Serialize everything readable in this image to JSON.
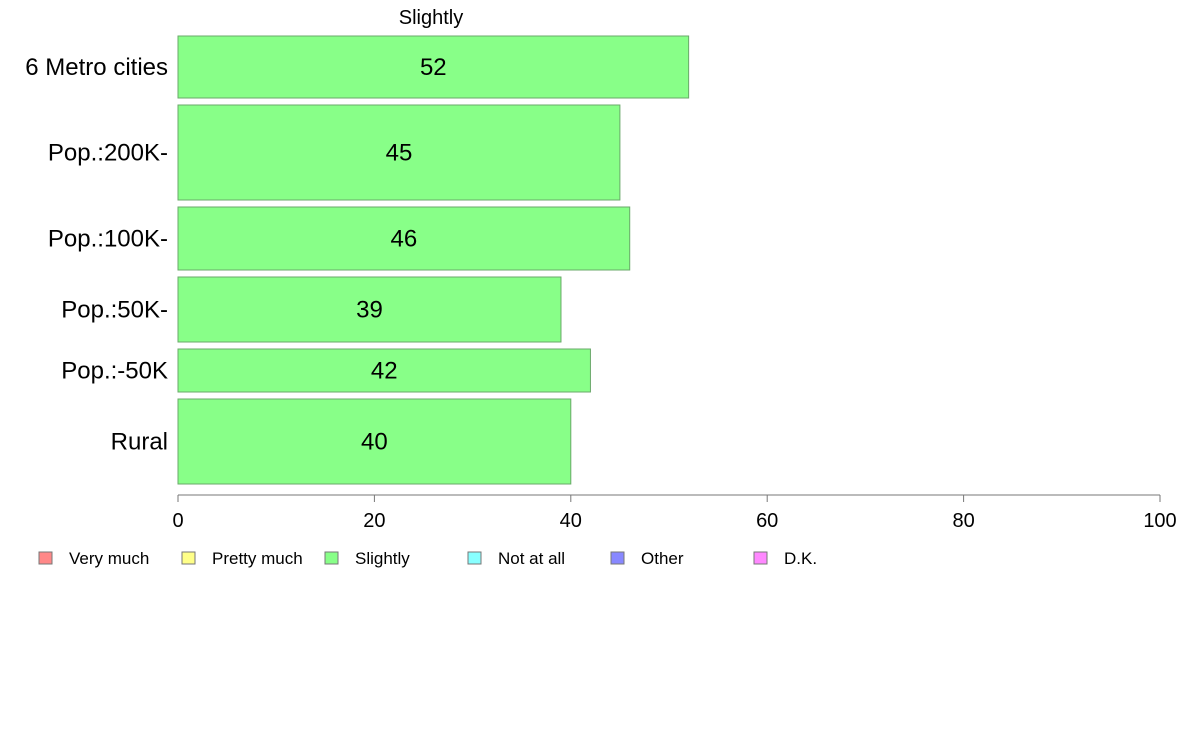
{
  "chart_data": {
    "type": "bar",
    "orientation": "horizontal",
    "title": "Slightly",
    "categories": [
      "6 Metro cities",
      "Pop.:200K-",
      "Pop.:100K-",
      "Pop.:50K-",
      "Pop.:-50K",
      "Rural"
    ],
    "series": [
      {
        "name": "Slightly",
        "values": [
          52,
          45,
          46,
          39,
          42,
          40
        ]
      }
    ],
    "xlim": [
      0,
      100
    ],
    "xticks": [
      0,
      20,
      40,
      60,
      80,
      100
    ],
    "grid": false,
    "bar_color": "#88ff88",
    "bar_edge_color": "#6aa86a",
    "legend": {
      "placement": "bottom-left",
      "items": [
        {
          "label": "Very much",
          "color": "#ff8888"
        },
        {
          "label": "Pretty much",
          "color": "#ffff88"
        },
        {
          "label": "Slightly",
          "color": "#88ff88"
        },
        {
          "label": "Not at all",
          "color": "#88ffff"
        },
        {
          "label": "Other",
          "color": "#8888ff"
        },
        {
          "label": "D.K.",
          "color": "#ff88ff"
        }
      ]
    }
  }
}
